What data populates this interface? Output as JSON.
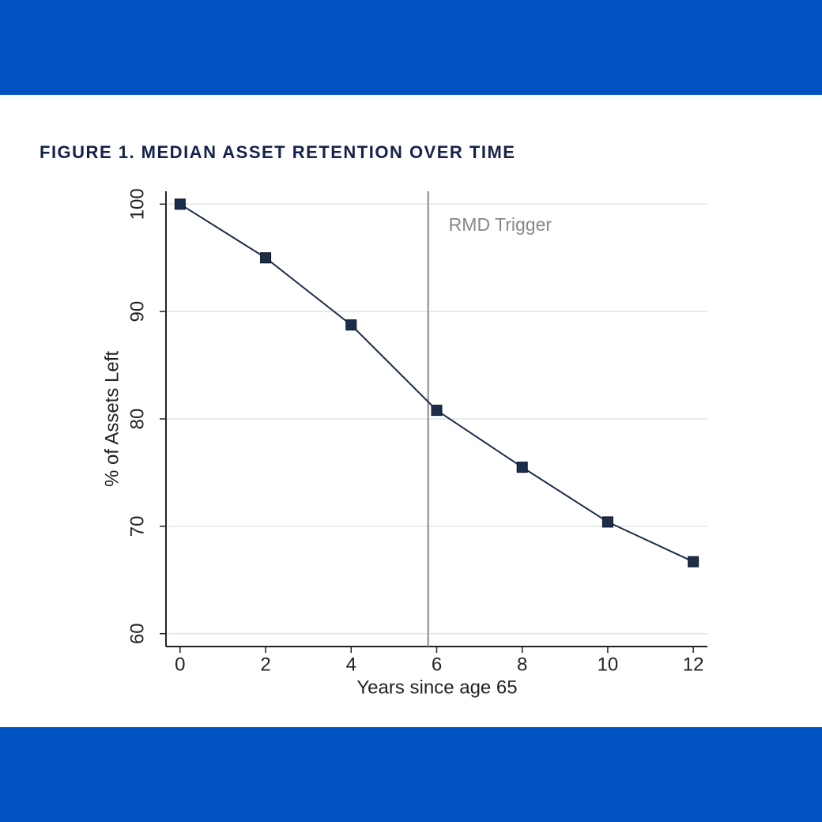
{
  "chart_data": {
    "type": "line",
    "title": "FIGURE 1. MEDIAN ASSET RETENTION OVER TIME",
    "x_label": "Years since age 65",
    "y_label": "% of Assets Left",
    "x": [
      0,
      2,
      4,
      6,
      8,
      10,
      12
    ],
    "series": [
      {
        "name": "% of Assets Left",
        "color": "#1c2e4a",
        "values": [
          100,
          95,
          88.75,
          80.8,
          75.5,
          70.4,
          66.7
        ]
      }
    ],
    "xlim": [
      -0.33,
      12.33
    ],
    "xticks": [
      0,
      2,
      4,
      6,
      8,
      10,
      12
    ],
    "ylim": [
      58.8,
      101.2
    ],
    "yticks": [
      60,
      70,
      80,
      90,
      100
    ],
    "grid": true,
    "vline": {
      "x": 5.8,
      "label": "RMD Trigger"
    }
  }
}
